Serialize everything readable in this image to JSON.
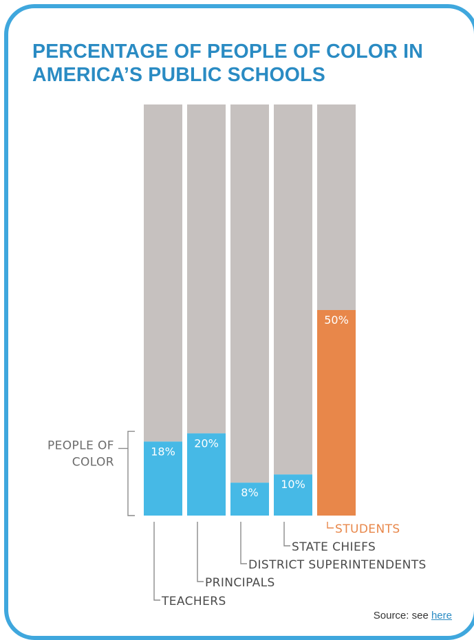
{
  "title": "PERCENTAGE OF PEOPLE OF COLOR IN AMERICA’S PUBLIC SCHOOLS",
  "source": {
    "prefix": "Source: see ",
    "link_label": "here"
  },
  "colors": {
    "frame": "#3fa7dd",
    "title": "#2a8bc3",
    "remainder": "#c6c1bf",
    "people_of_color": "#46b9e6",
    "students": "#e8874a",
    "label": "#4a4a4a"
  },
  "chart_data": {
    "type": "bar",
    "stacked": true,
    "title": "PERCENTAGE OF PEOPLE OF COLOR IN AMERICA’S PUBLIC SCHOOLS",
    "categories": [
      "TEACHERS",
      "PRINCIPALS",
      "DISTRICT SUPERINTENDENTS",
      "STATE CHIEFS",
      "STUDENTS"
    ],
    "values": [
      18,
      20,
      8,
      10,
      50
    ],
    "value_labels": [
      "18%",
      "20%",
      "8%",
      "10%",
      "50%"
    ],
    "ylim": [
      0,
      100
    ],
    "bracket_label_lines": [
      "PEOPLE OF",
      "COLOR"
    ],
    "highlight_category": "STUDENTS",
    "grid": false
  }
}
